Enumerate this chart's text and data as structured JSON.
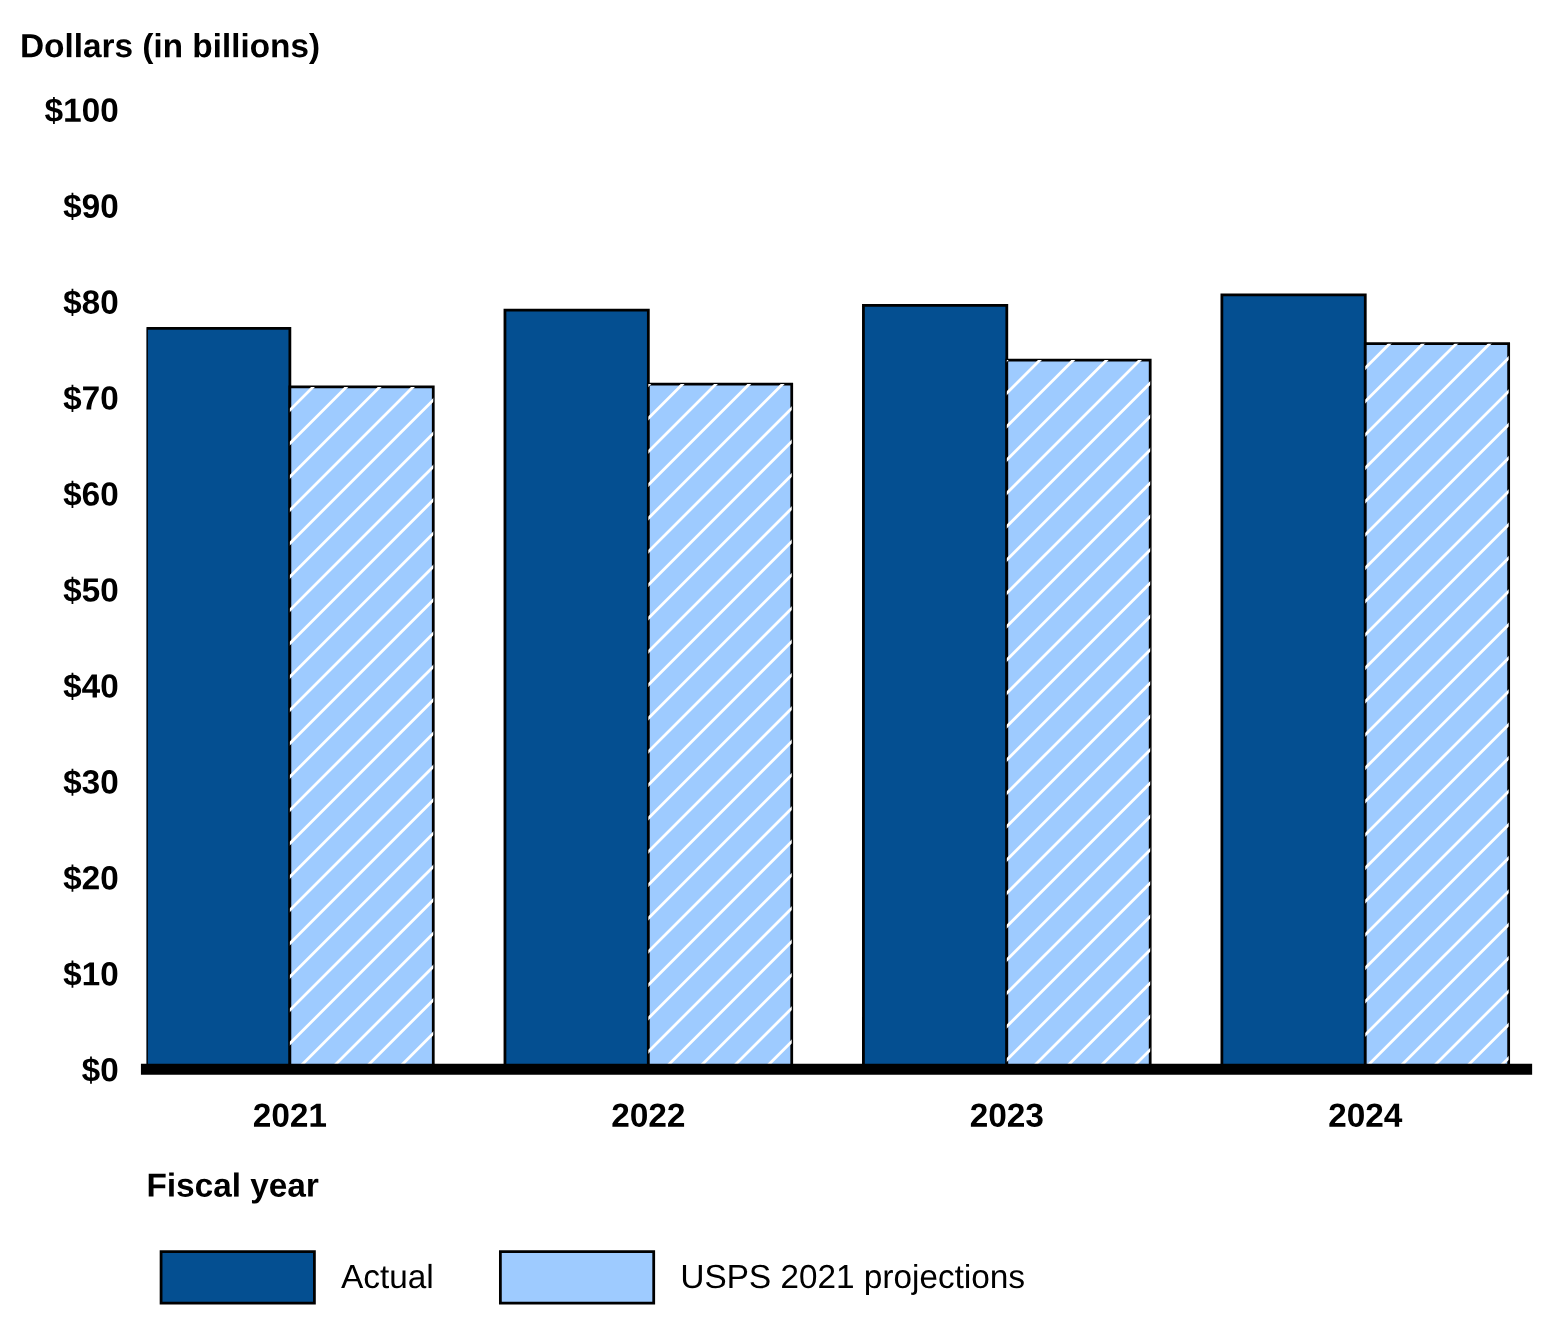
{
  "chart_data": {
    "type": "bar",
    "ylabel": "Dollars (in billions)",
    "xlabel": "Fiscal year",
    "categories": [
      "2021",
      "2022",
      "2023",
      "2024"
    ],
    "series": [
      {
        "name": "Actual",
        "color": "#044f91",
        "values": [
          77.2,
          79.1,
          79.6,
          80.7
        ]
      },
      {
        "name": "USPS 2021 projections",
        "color": "#9ecbff",
        "values": [
          71.1,
          71.4,
          73.9,
          75.6
        ]
      }
    ],
    "ylim": [
      0,
      100
    ],
    "yticks": [
      {
        "value": 0,
        "label": "$0"
      },
      {
        "value": 10,
        "label": "$10"
      },
      {
        "value": 20,
        "label": "$20"
      },
      {
        "value": 30,
        "label": "$30"
      },
      {
        "value": 40,
        "label": "$40"
      },
      {
        "value": 50,
        "label": "$50"
      },
      {
        "value": 60,
        "label": "$60"
      },
      {
        "value": 70,
        "label": "$70"
      },
      {
        "value": 80,
        "label": "$80"
      },
      {
        "value": 90,
        "label": "$90"
      },
      {
        "value": 100,
        "label": "$100"
      }
    ],
    "grid": false,
    "legend": "bottom"
  }
}
